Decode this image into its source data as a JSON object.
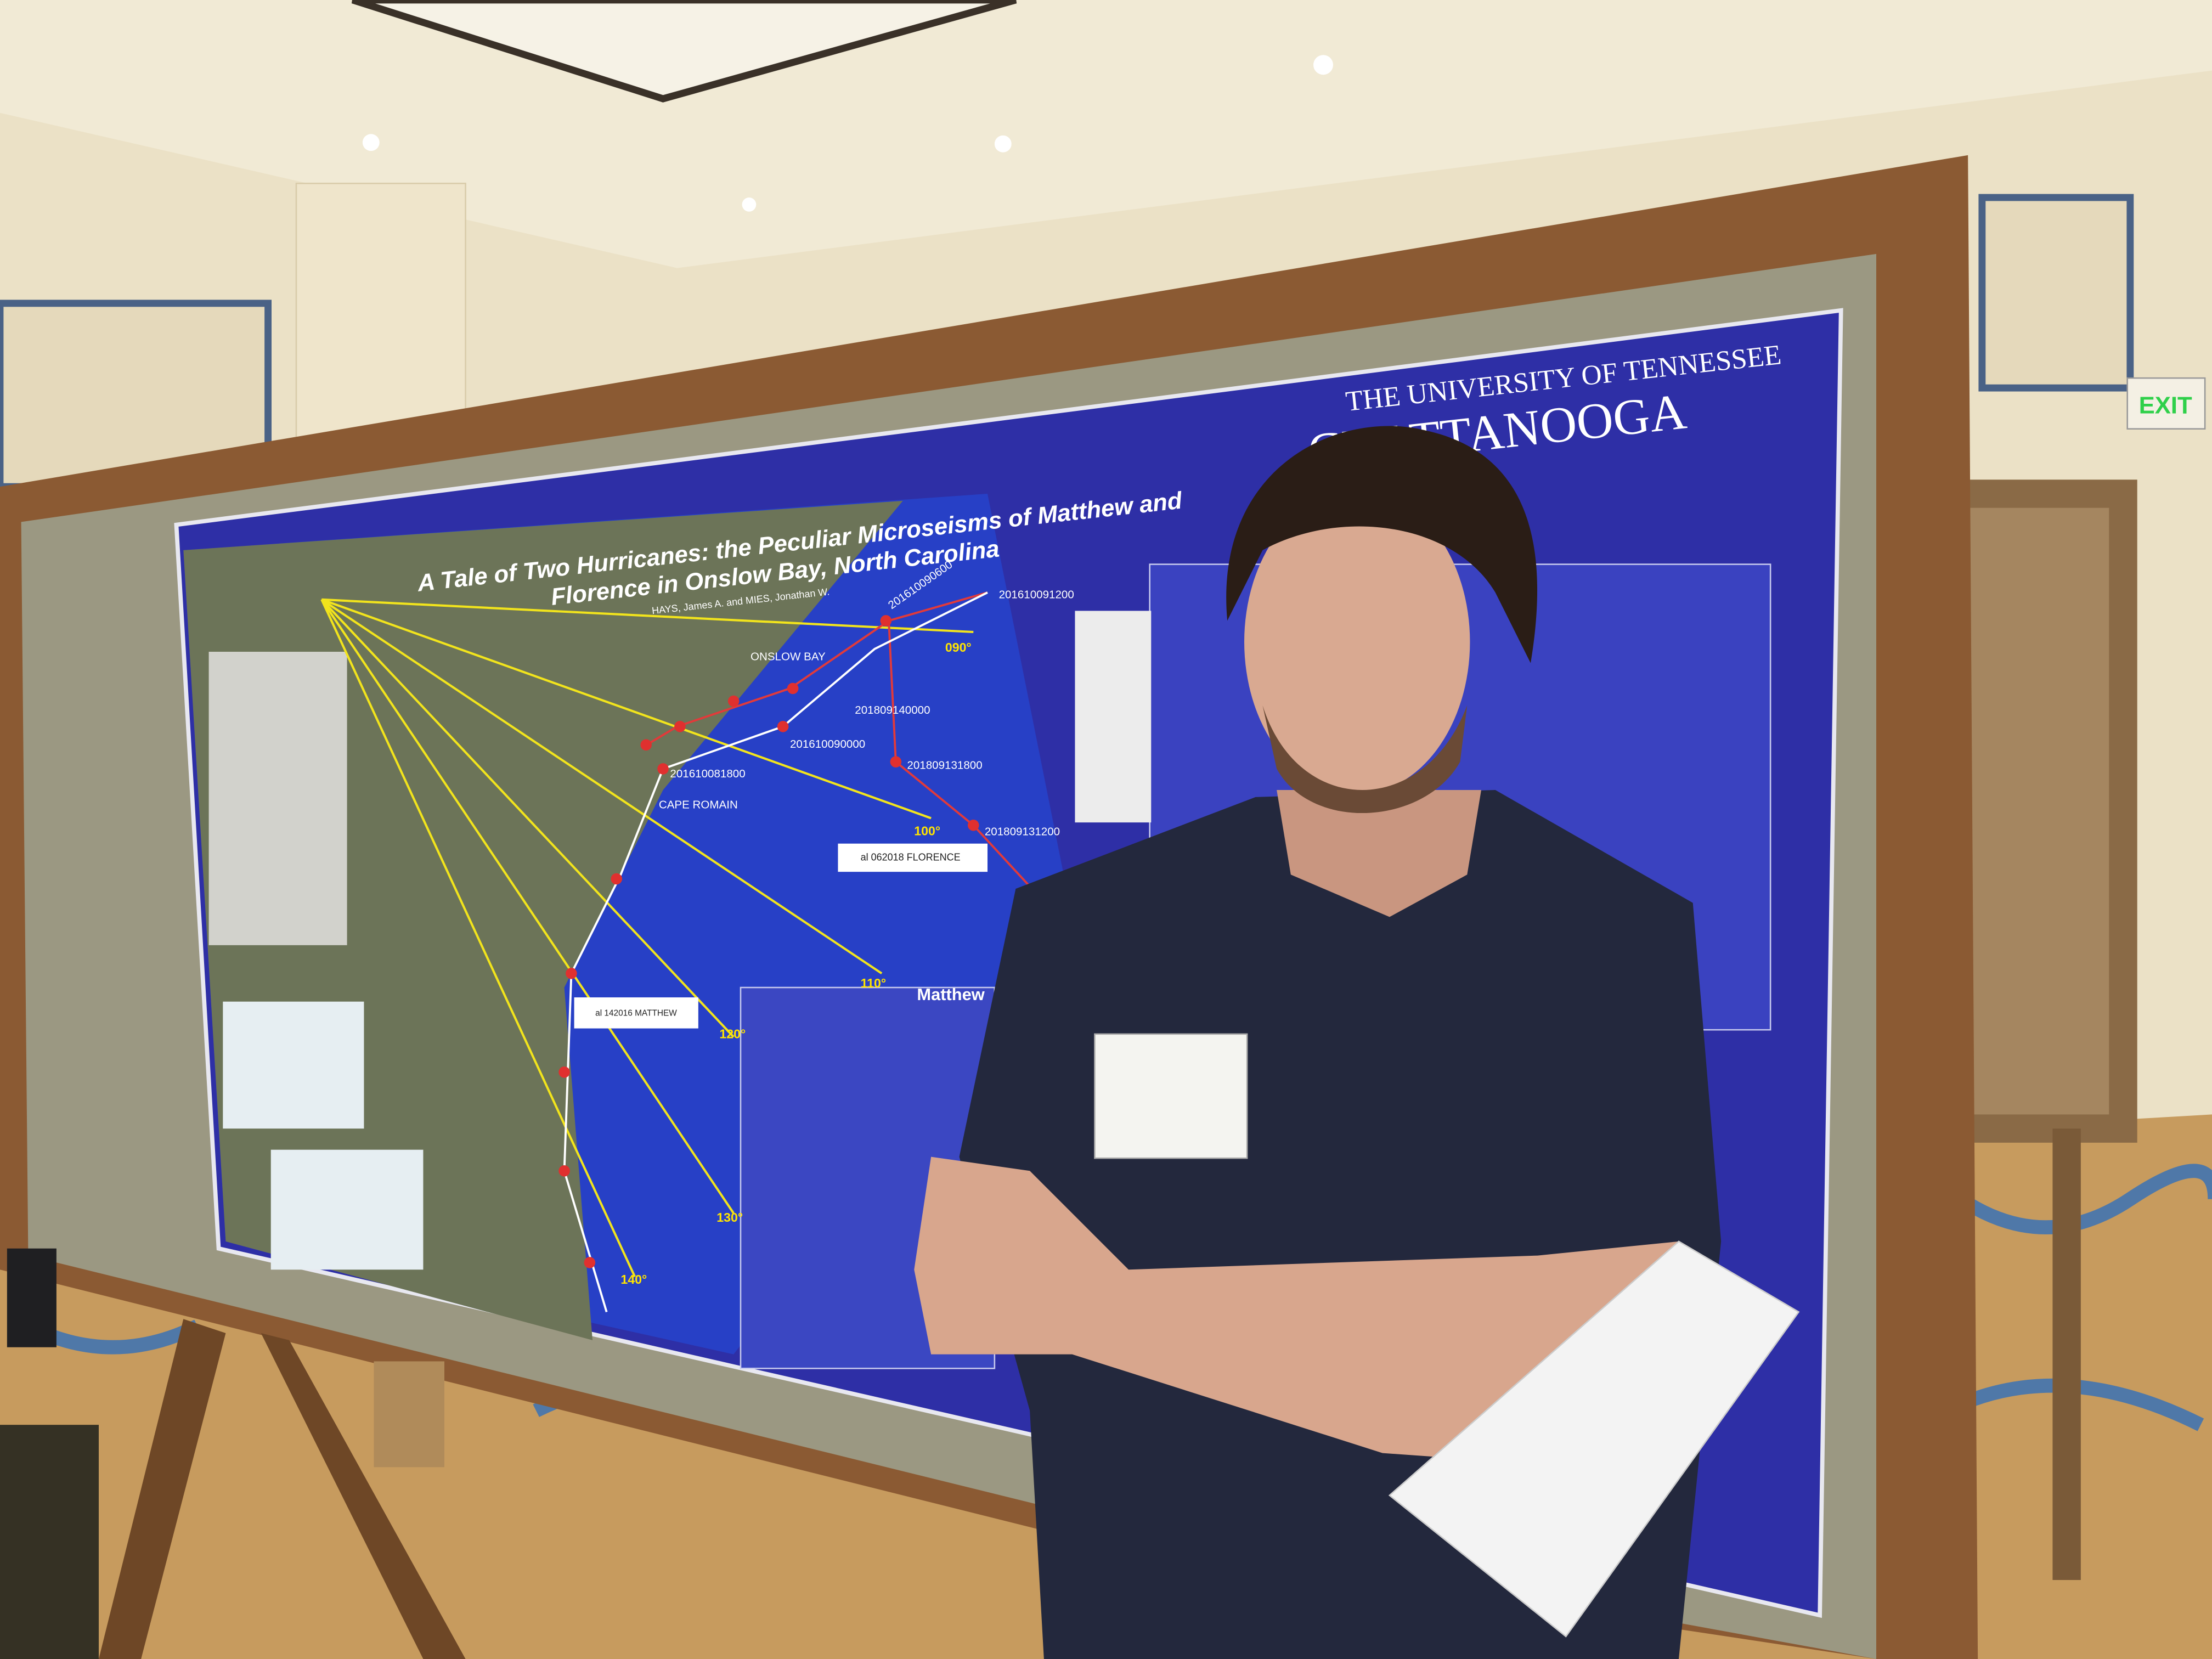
{
  "poster": {
    "title_line1": "A Tale of Two Hurricanes: the Peculiar Microseisms of Matthew and",
    "title_line2": "Florence in Onslow Bay, North Carolina",
    "authors": "HAYS, James A. and MIES, Jonathan W.",
    "university_line1": "THE UNIVERSITY OF TENNESSEE",
    "university_line2": "CHATTANOOGA",
    "map_labels": [
      "ONSLOW BAY",
      "CAPE ROMAIN",
      "Matthew"
    ],
    "track_times": [
      "201610091200",
      "201610090600",
      "201809140000",
      "201610090000",
      "201809131800",
      "201610081800",
      "201809131200"
    ],
    "azimuths": [
      "090°",
      "100°",
      "110°",
      "120°",
      "130°",
      "140°"
    ],
    "storm_boxes": [
      "al 062018 FLORENCE",
      "al 142016 MATTHEW"
    ]
  },
  "exit_sign": "EXIT"
}
